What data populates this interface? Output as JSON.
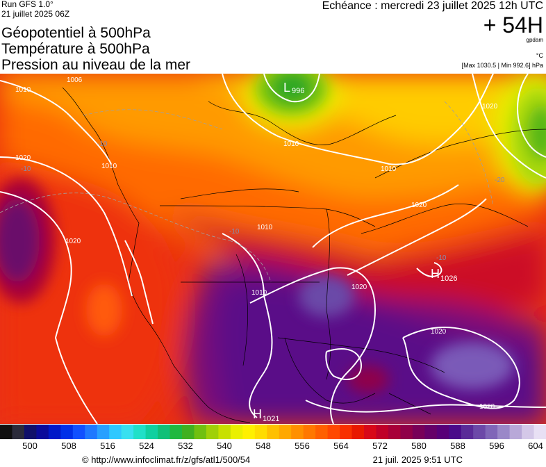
{
  "header": {
    "run_label": "Run GFS 1.0°",
    "run_date": "21 juillet 2025 06Z",
    "titles": [
      "Géopotentiel à 500hPa",
      "Température à 500hPa",
      "Pression au niveau de la mer"
    ],
    "forecast_time": "Echéance : mercredi 23 juillet 2025 12h UTC",
    "forecast_offset": "+ 54H",
    "unit_geopotential": "gpdam",
    "unit_temperature": "°C",
    "pressure_range": "[Max 1030.5 | Min 992.6] hPa"
  },
  "map": {
    "isobar_labels": [
      "1006",
      "1010",
      "1010",
      "1010",
      "1010",
      "1020",
      "1020",
      "1020",
      "1020",
      "1010",
      "1020",
      "1010",
      "1020",
      "1020"
    ],
    "pressure_centers": [
      {
        "type": "L",
        "value": "996"
      },
      {
        "type": "H",
        "value": "1026"
      },
      {
        "type": "H",
        "value": "1021"
      }
    ],
    "temperature_labels": [
      "-10",
      "-10",
      "-20",
      "-10",
      "-10"
    ]
  },
  "colorbar": {
    "ticks": [
      "500",
      "508",
      "516",
      "524",
      "532",
      "540",
      "548",
      "556",
      "564",
      "572",
      "580",
      "588",
      "596",
      "604"
    ],
    "colors": [
      "#101010",
      "#2b2b3b",
      "#10106a",
      "#0a0a9a",
      "#0018c8",
      "#0030e8",
      "#1050ff",
      "#1e78ff",
      "#28a0ff",
      "#2ec8ff",
      "#38e0f0",
      "#20e0c8",
      "#10d0a0",
      "#10c078",
      "#20b840",
      "#40b020",
      "#70c010",
      "#a0d008",
      "#c8e000",
      "#eaf000",
      "#fff000",
      "#ffdc00",
      "#ffc000",
      "#ffa800",
      "#ff9000",
      "#ff7800",
      "#ff6000",
      "#ff4800",
      "#f83000",
      "#e81800",
      "#d80818",
      "#c00028",
      "#a80038",
      "#900048",
      "#780058",
      "#660068",
      "#580078",
      "#4a0a8a",
      "#5a2a98",
      "#6c48a8",
      "#8066b8",
      "#9a88c8",
      "#b8a8d8",
      "#d4c8e8",
      "#e8e0f4"
    ]
  },
  "footer": {
    "copyright": "© http://www.infoclimat.fr/z/gfs/atl1/500/54",
    "generated": "21 juil. 2025  9:51 UTC"
  }
}
